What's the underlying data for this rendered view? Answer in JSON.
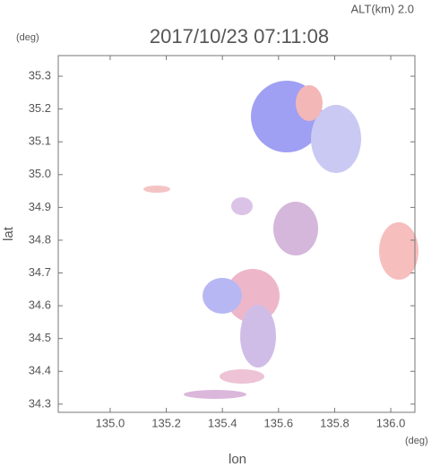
{
  "chart_data": {
    "type": "radar-map",
    "title": "2017/10/23 07:11:08",
    "subtitle": "ALT(km) 2.0",
    "y_unit": "(deg)",
    "x_unit": "(deg)",
    "xlabel": "lon",
    "ylabel": "lat",
    "xlim": [
      134.815,
      136.086
    ],
    "ylim": [
      34.275,
      35.363
    ],
    "xticks": [
      {
        "value": 135.0,
        "label": "135.0"
      },
      {
        "value": 135.2,
        "label": "135.2"
      },
      {
        "value": 135.4,
        "label": "135.4"
      },
      {
        "value": 135.6,
        "label": "135.6"
      },
      {
        "value": 135.8,
        "label": "135.8"
      },
      {
        "value": 136.0,
        "label": "136.0"
      }
    ],
    "yticks": [
      34.3,
      34.4,
      34.5,
      34.6,
      34.7,
      34.8,
      34.9,
      {
        "value": 35.0,
        "label": "35.0"
      },
      35.1,
      35.2,
      35.3
    ]
  }
}
